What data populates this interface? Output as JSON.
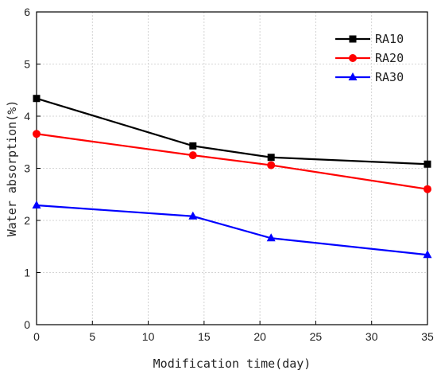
{
  "chart_data": {
    "type": "line",
    "title": "",
    "xlabel": "Modification time(day)",
    "ylabel": "Water absorption(%)",
    "xlim": [
      0,
      35
    ],
    "ylim": [
      0,
      6
    ],
    "xticks": [
      0,
      5,
      10,
      15,
      20,
      25,
      30,
      35
    ],
    "yticks": [
      0,
      1,
      2,
      3,
      4,
      5,
      6
    ],
    "x": [
      0,
      14,
      21,
      35
    ],
    "grid": true,
    "legend_position": "top-right",
    "series": [
      {
        "name": "RA10",
        "values": [
          4.34,
          3.43,
          3.21,
          3.08
        ],
        "color": "#000000",
        "marker": "square"
      },
      {
        "name": "RA20",
        "values": [
          3.66,
          3.25,
          3.06,
          2.6
        ],
        "color": "#ff0000",
        "marker": "circle"
      },
      {
        "name": "RA30",
        "values": [
          2.29,
          2.08,
          1.66,
          1.34
        ],
        "color": "#0000ff",
        "marker": "triangle"
      }
    ]
  }
}
